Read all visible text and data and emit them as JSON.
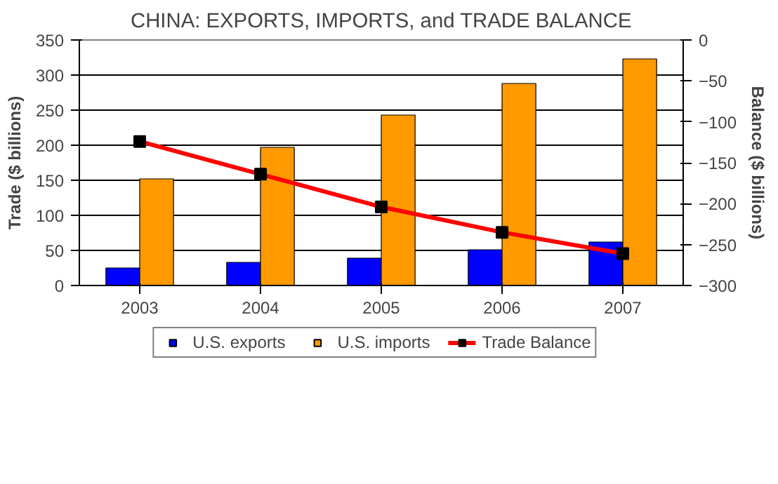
{
  "chart_data": {
    "type": "bar",
    "title": "CHINA: EXPORTS, IMPORTS, and TRADE BALANCE",
    "ylabel": "Trade ($ billions)",
    "y2label": "Balance ($ billions)",
    "categories": [
      "2003",
      "2004",
      "2005",
      "2006",
      "2007"
    ],
    "series": [
      {
        "name": "U.S. exports",
        "color": "#0000ff",
        "values": [
          25,
          33,
          39,
          51,
          62
        ]
      },
      {
        "name": "U.S. imports",
        "color": "#ff9900",
        "values": [
          152,
          197,
          243,
          288,
          323
        ]
      },
      {
        "name": "Trade Balance",
        "type": "line",
        "axis": "y2",
        "color": "#ff0000",
        "marker": "square",
        "values": [
          -124,
          -164,
          -204,
          -235,
          -261
        ]
      }
    ],
    "ylim": [
      0,
      350
    ],
    "yticks": [
      0,
      50,
      100,
      150,
      200,
      250,
      300,
      350
    ],
    "y2lim": [
      -300,
      0
    ],
    "y2ticks": [
      -300,
      -250,
      -200,
      -150,
      -100,
      -50,
      0
    ],
    "grid": "y",
    "legend": "bottom"
  }
}
